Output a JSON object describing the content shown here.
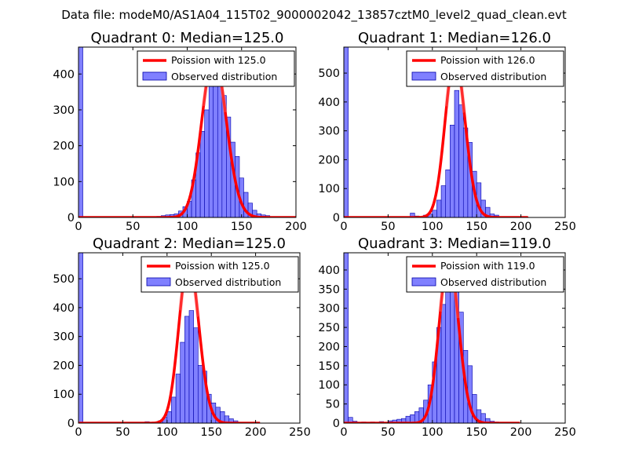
{
  "figure_title": "Data file: modeM0/AS1A04_115T02_9000002042_13857cztM0_level2_quad_clean.evt",
  "colors": {
    "hist_fill": "#8080ff",
    "hist_edge": "#0000aa",
    "poisson_line": "#ff0000",
    "poisson_faint": "#ff8080",
    "axes": "#000000"
  },
  "legend": {
    "observed_label": "Observed distribution"
  },
  "chart_data": [
    {
      "type": "bar",
      "title": "Quadrant 0: Median=125.0",
      "median": 125.0,
      "xlim": [
        0,
        200
      ],
      "ylim": [
        0,
        475
      ],
      "xticks": [
        0,
        50,
        100,
        150,
        200
      ],
      "yticks": [
        0,
        100,
        200,
        300,
        400
      ],
      "bin_width": 4,
      "series": [
        {
          "name": "Poission with 125.0",
          "kind": "line",
          "mean": 125.0,
          "peak": 450
        },
        {
          "name": "Observed distribution",
          "kind": "histogram",
          "bins": [
            [
              0,
              475
            ],
            [
              72,
              3
            ],
            [
              76,
              5
            ],
            [
              80,
              7
            ],
            [
              84,
              8
            ],
            [
              88,
              10
            ],
            [
              92,
              18
            ],
            [
              96,
              30
            ],
            [
              100,
              45
            ],
            [
              104,
              105
            ],
            [
              108,
              180
            ],
            [
              112,
              240
            ],
            [
              116,
              300
            ],
            [
              120,
              380
            ],
            [
              124,
              440
            ],
            [
              128,
              420
            ],
            [
              132,
              340
            ],
            [
              136,
              280
            ],
            [
              140,
              210
            ],
            [
              144,
              170
            ],
            [
              148,
              110
            ],
            [
              152,
              70
            ],
            [
              156,
              40
            ],
            [
              160,
              20
            ],
            [
              164,
              10
            ],
            [
              168,
              7
            ],
            [
              172,
              5
            ]
          ]
        }
      ]
    },
    {
      "type": "bar",
      "title": "Quadrant 1: Median=126.0",
      "median": 126.0,
      "xlim": [
        0,
        250
      ],
      "ylim": [
        0,
        590
      ],
      "xticks": [
        0,
        50,
        100,
        150,
        200,
        250
      ],
      "yticks": [
        0,
        100,
        200,
        300,
        400,
        500
      ],
      "bin_width": 5,
      "series": [
        {
          "name": "Poission with 126.0",
          "kind": "line",
          "mean": 126.0,
          "peak": 555
        },
        {
          "name": "Observed distribution",
          "kind": "histogram",
          "bins": [
            [
              0,
              590
            ],
            [
              75,
              15
            ],
            [
              80,
              5
            ],
            [
              90,
              8
            ],
            [
              95,
              12
            ],
            [
              100,
              25
            ],
            [
              105,
              60
            ],
            [
              110,
              110
            ],
            [
              115,
              165
            ],
            [
              120,
              320
            ],
            [
              125,
              440
            ],
            [
              130,
              390
            ],
            [
              135,
              310
            ],
            [
              140,
              260
            ],
            [
              145,
              160
            ],
            [
              150,
              120
            ],
            [
              155,
              60
            ],
            [
              160,
              35
            ],
            [
              165,
              12
            ],
            [
              170,
              8
            ],
            [
              175,
              3
            ]
          ]
        }
      ]
    },
    {
      "type": "bar",
      "title": "Quadrant 2: Median=125.0",
      "median": 125.0,
      "xlim": [
        0,
        250
      ],
      "ylim": [
        0,
        590
      ],
      "xticks": [
        0,
        50,
        100,
        150,
        200,
        250
      ],
      "yticks": [
        0,
        100,
        200,
        300,
        400,
        500
      ],
      "bin_width": 5,
      "series": [
        {
          "name": "Poission with 125.0",
          "kind": "line",
          "mean": 125.0,
          "peak": 565
        },
        {
          "name": "Observed distribution",
          "kind": "histogram",
          "bins": [
            [
              0,
              590
            ],
            [
              75,
              5
            ],
            [
              80,
              3
            ],
            [
              90,
              8
            ],
            [
              95,
              20
            ],
            [
              100,
              40
            ],
            [
              105,
              90
            ],
            [
              110,
              170
            ],
            [
              115,
              280
            ],
            [
              120,
              370
            ],
            [
              125,
              390
            ],
            [
              130,
              330
            ],
            [
              135,
              200
            ],
            [
              140,
              180
            ],
            [
              145,
              100
            ],
            [
              150,
              70
            ],
            [
              155,
              55
            ],
            [
              160,
              40
            ],
            [
              165,
              25
            ],
            [
              170,
              15
            ],
            [
              175,
              8
            ],
            [
              180,
              3
            ]
          ]
        }
      ]
    },
    {
      "type": "bar",
      "title": "Quadrant 3: Median=119.0",
      "median": 119.0,
      "xlim": [
        0,
        250
      ],
      "ylim": [
        0,
        445
      ],
      "xticks": [
        0,
        50,
        100,
        150,
        200,
        250
      ],
      "yticks": [
        0,
        50,
        100,
        150,
        200,
        250,
        300,
        350,
        400
      ],
      "bin_width": 5,
      "series": [
        {
          "name": "Poission with 119.0",
          "kind": "line",
          "mean": 119.0,
          "peak": 430
        },
        {
          "name": "Observed distribution",
          "kind": "histogram",
          "bins": [
            [
              0,
              445
            ],
            [
              5,
              15
            ],
            [
              10,
              5
            ],
            [
              20,
              3
            ],
            [
              30,
              3
            ],
            [
              40,
              4
            ],
            [
              50,
              6
            ],
            [
              55,
              8
            ],
            [
              60,
              10
            ],
            [
              65,
              12
            ],
            [
              70,
              18
            ],
            [
              75,
              22
            ],
            [
              80,
              30
            ],
            [
              85,
              40
            ],
            [
              90,
              60
            ],
            [
              95,
              100
            ],
            [
              100,
              160
            ],
            [
              105,
              250
            ],
            [
              110,
              310
            ],
            [
              115,
              370
            ],
            [
              120,
              380
            ],
            [
              125,
              350
            ],
            [
              130,
              290
            ],
            [
              135,
              190
            ],
            [
              140,
              150
            ],
            [
              145,
              75
            ],
            [
              150,
              35
            ],
            [
              155,
              25
            ],
            [
              160,
              12
            ],
            [
              165,
              5
            ],
            [
              170,
              3
            ]
          ]
        }
      ]
    }
  ]
}
